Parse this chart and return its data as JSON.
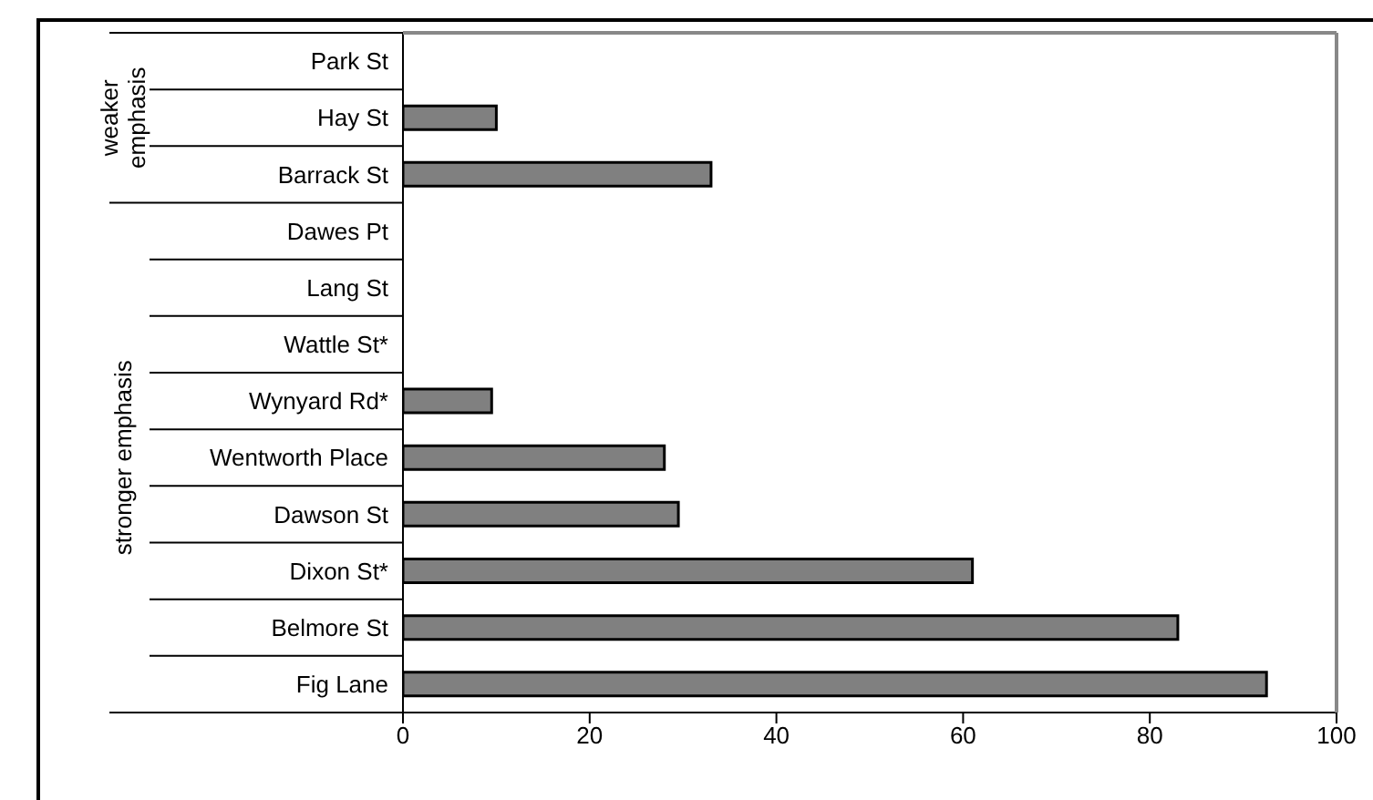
{
  "chart_data": {
    "type": "bar",
    "orientation": "horizontal",
    "categories": [
      "Park St",
      "Hay St",
      "Barrack St",
      "Dawes Pt",
      "Lang St",
      "Wattle St*",
      "Wynyard Rd*",
      "Wentworth Place",
      "Dawson St",
      "Dixon St*",
      "Belmore St",
      "Fig Lane"
    ],
    "values": [
      0,
      10,
      33,
      0,
      0,
      0,
      9.5,
      28,
      29.5,
      61,
      83,
      92.5
    ],
    "color": "#808080",
    "xlim": [
      0,
      100
    ],
    "xticks": [
      0,
      20,
      40,
      60,
      80,
      100
    ],
    "annotations": [
      "weaker emphasis",
      "stronger emphasis"
    ]
  }
}
